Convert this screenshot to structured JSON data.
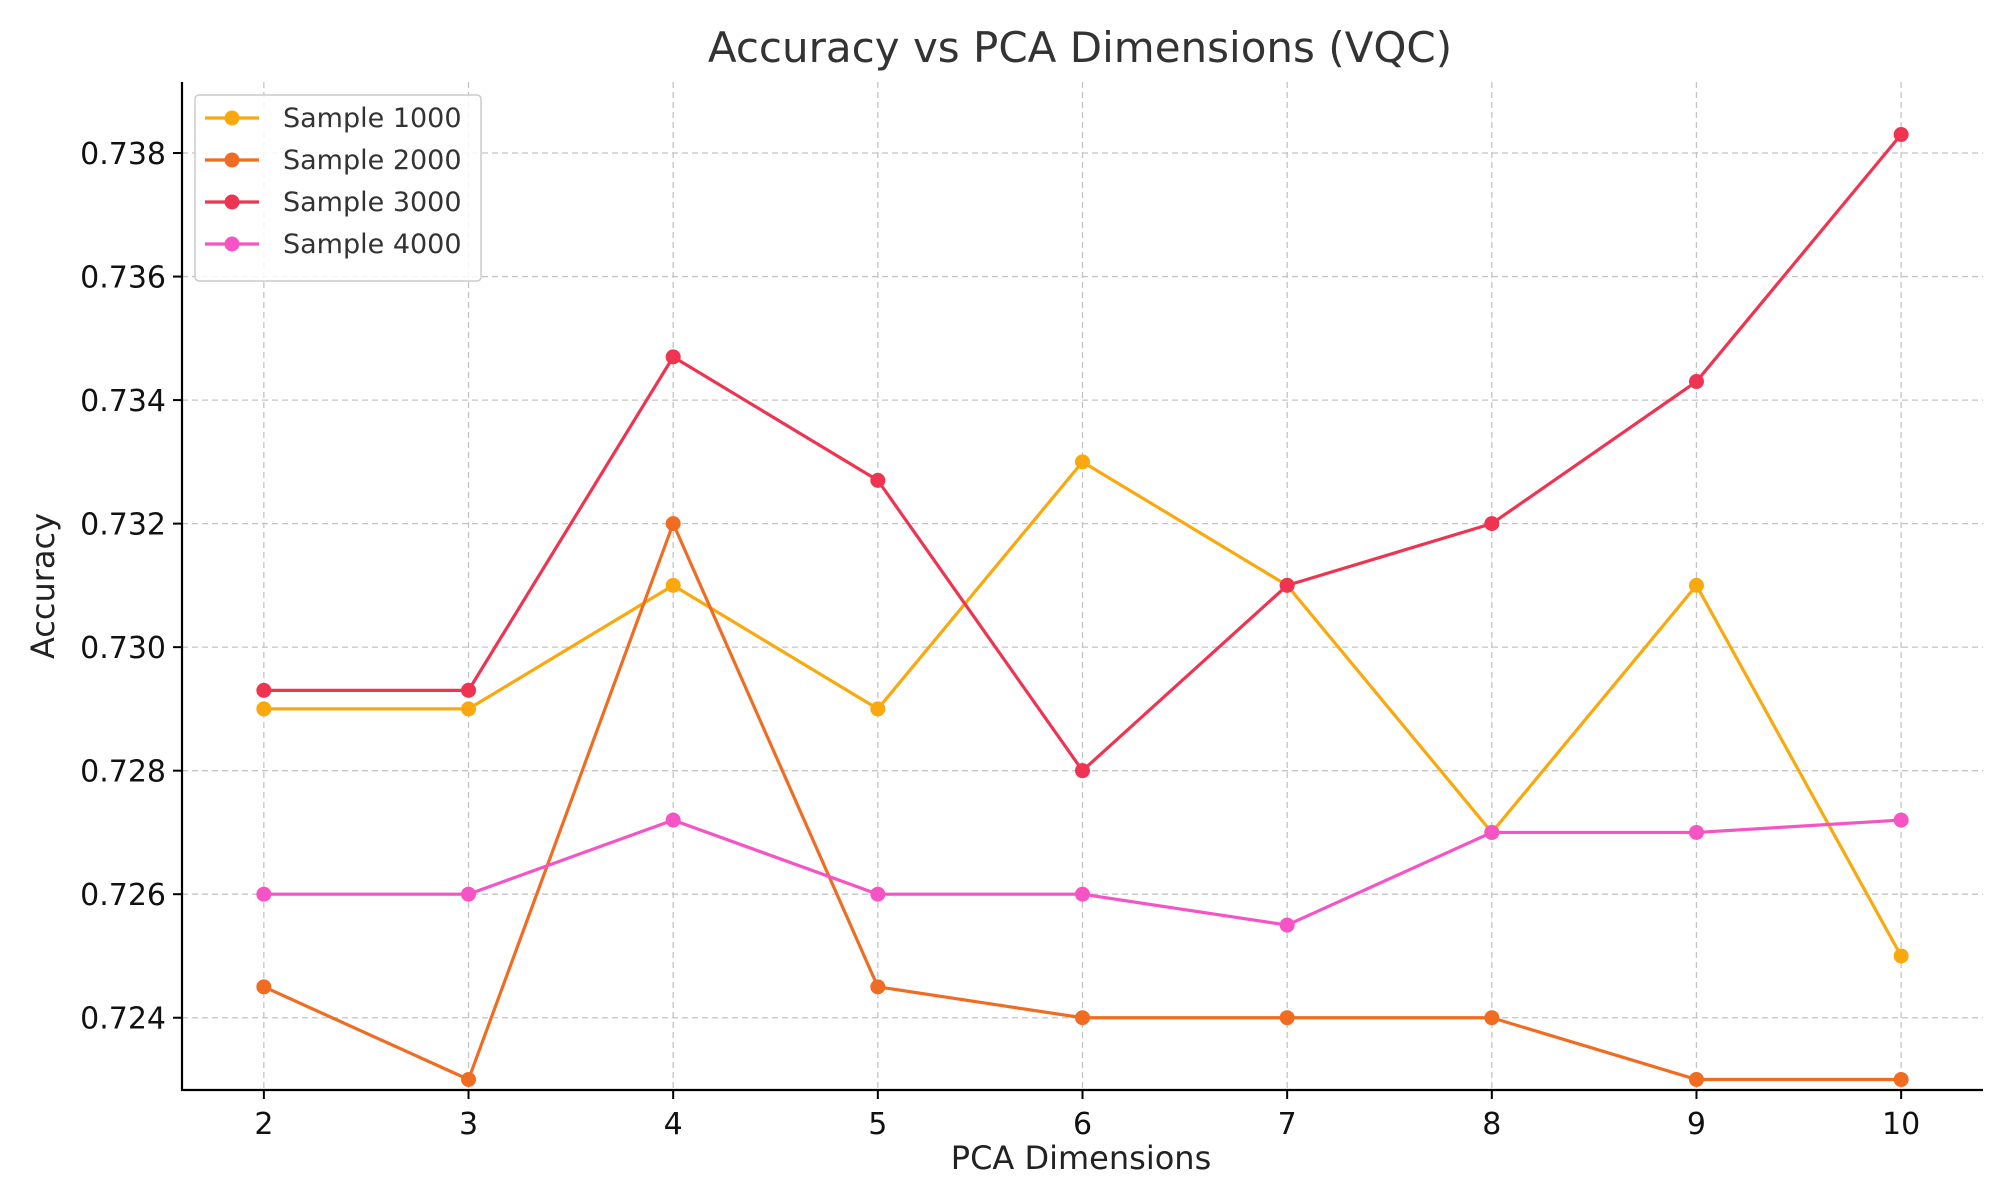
{
  "chart_data": {
    "type": "line",
    "title": "Accuracy vs PCA Dimensions (VQC)",
    "xlabel": "PCA Dimensions",
    "ylabel": "Accuracy",
    "x": [
      2,
      3,
      4,
      5,
      6,
      7,
      8,
      9,
      10
    ],
    "x_tick_labels": [
      "2",
      "3",
      "4",
      "5",
      "6",
      "7",
      "8",
      "9",
      "10"
    ],
    "xlim": [
      1.6,
      10.4
    ],
    "ylim": [
      0.72283,
      0.73915
    ],
    "y_ticks": [
      0.724,
      0.726,
      0.728,
      0.73,
      0.732,
      0.734,
      0.736,
      0.738
    ],
    "y_tick_labels": [
      "0.724",
      "0.726",
      "0.728",
      "0.730",
      "0.732",
      "0.734",
      "0.736",
      "0.738"
    ],
    "grid": true,
    "legend_position": "top-left",
    "series": [
      {
        "name": "Sample 1000",
        "color": "#f9a90e",
        "values": [
          0.729,
          0.729,
          0.731,
          0.729,
          0.733,
          0.731,
          0.727,
          0.731,
          0.725
        ]
      },
      {
        "name": "Sample 2000",
        "color": "#f06c22",
        "values": [
          0.7245,
          0.723,
          0.732,
          0.7245,
          0.724,
          0.724,
          0.724,
          0.723,
          0.723
        ]
      },
      {
        "name": "Sample 3000",
        "color": "#ef3452",
        "values": [
          0.7293,
          0.7293,
          0.7347,
          0.7327,
          0.728,
          0.731,
          0.732,
          0.7343,
          0.7383
        ]
      },
      {
        "name": "Sample 4000",
        "color": "#f654c5",
        "values": [
          0.726,
          0.726,
          0.7272,
          0.726,
          0.726,
          0.7255,
          0.727,
          0.727,
          0.7272
        ]
      }
    ]
  }
}
